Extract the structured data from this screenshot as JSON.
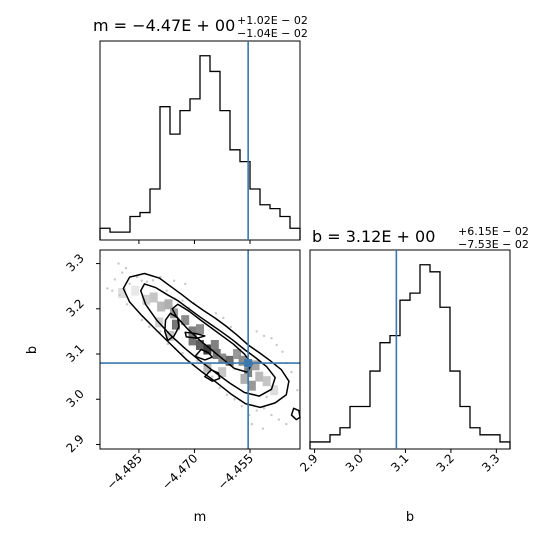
{
  "chart_data": [
    {
      "type": "histogram",
      "panel": "m-marginal",
      "title_main": "m = −4.47E + 00",
      "title_sup": "+1.02E − 02",
      "title_sub": "−1.04E − 02",
      "xlim": [
        -4.4955,
        -4.4415
      ],
      "truth": -4.4555,
      "bin_edges": [
        -4.4955,
        -4.4928,
        -4.4901,
        -4.4874,
        -4.4847,
        -4.482,
        -4.4793,
        -4.4766,
        -4.4739,
        -4.4712,
        -4.4685,
        -4.4658,
        -4.4631,
        -4.4604,
        -4.4577,
        -4.455,
        -4.4523,
        -4.4496,
        -4.4469,
        -4.4442,
        -4.4415
      ],
      "counts": [
        3,
        2,
        2,
        6,
        7,
        13,
        34,
        27,
        33,
        36,
        47,
        43,
        33,
        23,
        20,
        13,
        9,
        8,
        6,
        3
      ]
    },
    {
      "type": "histogram",
      "panel": "b-marginal",
      "title_main": "b = 3.12E + 00",
      "title_sup": "+6.15E − 02",
      "title_sub": "−7.53E − 02",
      "xlim": [
        2.89,
        3.33
      ],
      "xticks": [
        2.9,
        3.0,
        3.1,
        3.2,
        3.3
      ],
      "xtick_labels": [
        "2.9",
        "3.0",
        "3.1",
        "3.2",
        "3.3"
      ],
      "xlabel": "b",
      "truth": 3.08,
      "bin_edges": [
        2.89,
        2.912,
        2.934,
        2.956,
        2.978,
        3.0,
        3.022,
        3.044,
        3.066,
        3.088,
        3.11,
        3.132,
        3.154,
        3.176,
        3.198,
        3.22,
        3.242,
        3.264,
        3.286,
        3.308,
        3.33
      ],
      "counts": [
        1,
        1,
        2,
        3,
        6,
        6,
        11,
        15,
        16,
        21,
        22,
        26,
        25,
        20,
        11,
        6,
        3,
        2,
        2,
        1
      ]
    },
    {
      "type": "contour",
      "panel": "m-b-joint",
      "xlim": [
        -4.4955,
        -4.4415
      ],
      "ylim": [
        2.89,
        3.33
      ],
      "xticks": [
        -4.485,
        -4.47,
        -4.455
      ],
      "xtick_labels": [
        "−4.485",
        "−4.470",
        "−4.455"
      ],
      "yticks": [
        2.9,
        3.0,
        3.1,
        3.2,
        3.3
      ],
      "ytick_labels": [
        "2.9",
        "3.0",
        "3.1",
        "3.2",
        "3.3"
      ],
      "xlabel": "m",
      "ylabel": "b",
      "truth_x": -4.4555,
      "truth_y": 3.08,
      "cells": [
        [
          -4.4895,
          3.235,
          0.15
        ],
        [
          -4.486,
          3.24,
          0.1
        ],
        [
          -4.483,
          3.22,
          0.2
        ],
        [
          -4.481,
          3.225,
          0.25
        ],
        [
          -4.479,
          3.205,
          0.3
        ],
        [
          -4.477,
          3.21,
          0.35
        ],
        [
          -4.4755,
          3.19,
          0.45
        ],
        [
          -4.475,
          3.165,
          0.6
        ],
        [
          -4.4725,
          3.175,
          0.5
        ],
        [
          -4.4705,
          3.15,
          0.55
        ],
        [
          -4.4685,
          3.155,
          0.5
        ],
        [
          -4.4705,
          3.13,
          0.6
        ],
        [
          -4.4685,
          3.12,
          0.7
        ],
        [
          -4.4665,
          3.11,
          0.85
        ],
        [
          -4.4645,
          3.12,
          0.55
        ],
        [
          -4.464,
          3.1,
          0.6
        ],
        [
          -4.4625,
          3.09,
          0.5
        ],
        [
          -4.4605,
          3.085,
          0.65
        ],
        [
          -4.4585,
          3.1,
          0.45
        ],
        [
          -4.457,
          3.085,
          0.5
        ],
        [
          -4.4555,
          3.06,
          0.55
        ],
        [
          -4.4535,
          3.075,
          0.4
        ],
        [
          -4.4565,
          3.045,
          0.35
        ],
        [
          -4.4545,
          3.03,
          0.45
        ],
        [
          -4.4525,
          3.05,
          0.3
        ],
        [
          -4.4505,
          3.04,
          0.25
        ],
        [
          -4.4485,
          3.02,
          0.15
        ],
        [
          -4.4665,
          3.07,
          0.3
        ],
        [
          -4.4625,
          3.06,
          0.25
        ],
        [
          -4.4765,
          3.14,
          0.25
        ],
        [
          -4.4795,
          3.17,
          0.2
        ]
      ],
      "points": [
        [
          -4.4915,
          3.265
        ],
        [
          -4.4905,
          3.3
        ],
        [
          -4.4885,
          3.29
        ],
        [
          -4.4895,
          3.28
        ],
        [
          -4.4875,
          3.255
        ],
        [
          -4.4935,
          3.245
        ],
        [
          -4.4855,
          3.27
        ],
        [
          -4.4842,
          3.262
        ],
        [
          -4.4828,
          3.26
        ],
        [
          -4.4812,
          3.263
        ],
        [
          -4.4792,
          3.27
        ],
        [
          -4.4775,
          3.24
        ],
        [
          -4.4752,
          3.222
        ],
        [
          -4.4732,
          3.218
        ],
        [
          -4.4715,
          3.202
        ],
        [
          -4.4702,
          3.212
        ],
        [
          -4.4842,
          3.175
        ],
        [
          -4.4822,
          3.16
        ],
        [
          -4.4792,
          3.15
        ],
        [
          -4.4772,
          3.122
        ],
        [
          -4.4752,
          3.112
        ],
        [
          -4.4732,
          3.102
        ],
        [
          -4.4692,
          3.085
        ],
        [
          -4.4672,
          3.06
        ],
        [
          -4.4652,
          3.05
        ],
        [
          -4.4632,
          3.025
        ],
        [
          -4.4612,
          3.01
        ],
        [
          -4.4592,
          3.0
        ],
        [
          -4.4572,
          2.985
        ],
        [
          -4.4552,
          2.965
        ],
        [
          -4.4532,
          2.975
        ],
        [
          -4.4512,
          2.98
        ],
        [
          -4.4492,
          2.965
        ],
        [
          -4.4472,
          2.955
        ],
        [
          -4.4452,
          2.945
        ],
        [
          -4.4432,
          2.96
        ],
        [
          -4.4478,
          3.12
        ],
        [
          -4.4462,
          3.105
        ],
        [
          -4.4492,
          3.135
        ],
        [
          -4.4512,
          3.14
        ],
        [
          -4.4532,
          3.15
        ],
        [
          -4.4452,
          3.08
        ],
        [
          -4.4438,
          3.06
        ],
        [
          -4.4422,
          3.02
        ],
        [
          -4.4505,
          3.005
        ],
        [
          -4.4545,
          2.945
        ],
        [
          -4.4515,
          2.935
        ],
        [
          -4.4622,
          3.18
        ],
        [
          -4.4642,
          3.19
        ],
        [
          -4.4602,
          3.16
        ],
        [
          -4.4882,
          3.21
        ],
        [
          -4.4902,
          3.23
        ],
        [
          -4.4922,
          3.24
        ],
        [
          -4.4725,
          3.255
        ],
        [
          -4.4755,
          3.262
        ]
      ],
      "level_outer": [
        [
          -4.4875,
          3.27
        ],
        [
          -4.4835,
          3.278
        ],
        [
          -4.4795,
          3.268
        ],
        [
          -4.4765,
          3.25
        ],
        [
          -4.4735,
          3.232
        ],
        [
          -4.4705,
          3.213
        ],
        [
          -4.4675,
          3.196
        ],
        [
          -4.4645,
          3.18
        ],
        [
          -4.4615,
          3.162
        ],
        [
          -4.4585,
          3.142
        ],
        [
          -4.4555,
          3.12
        ],
        [
          -4.4525,
          3.103
        ],
        [
          -4.4495,
          3.085
        ],
        [
          -4.4465,
          3.065
        ],
        [
          -4.4445,
          3.04
        ],
        [
          -4.4452,
          3.01
        ],
        [
          -4.4482,
          2.992
        ],
        [
          -4.4522,
          2.982
        ],
        [
          -4.4562,
          2.99
        ],
        [
          -4.4602,
          3.012
        ],
        [
          -4.4642,
          3.038
        ],
        [
          -4.4682,
          3.062
        ],
        [
          -4.4722,
          3.088
        ],
        [
          -4.4762,
          3.12
        ],
        [
          -4.4802,
          3.152
        ],
        [
          -4.4842,
          3.185
        ],
        [
          -4.4875,
          3.215
        ],
        [
          -4.4892,
          3.245
        ]
      ],
      "level_mid": [
        [
          -4.4835,
          3.255
        ],
        [
          -4.4805,
          3.247
        ],
        [
          -4.4775,
          3.232
        ],
        [
          -4.4745,
          3.218
        ],
        [
          -4.4715,
          3.2
        ],
        [
          -4.4685,
          3.182
        ],
        [
          -4.4655,
          3.165
        ],
        [
          -4.4625,
          3.148
        ],
        [
          -4.4595,
          3.13
        ],
        [
          -4.4565,
          3.11
        ],
        [
          -4.4535,
          3.092
        ],
        [
          -4.4505,
          3.072
        ],
        [
          -4.4482,
          3.048
        ],
        [
          -4.4492,
          3.022
        ],
        [
          -4.4525,
          3.007
        ],
        [
          -4.4565,
          3.015
        ],
        [
          -4.4605,
          3.036
        ],
        [
          -4.4645,
          3.06
        ],
        [
          -4.4685,
          3.085
        ],
        [
          -4.4725,
          3.112
        ],
        [
          -4.4765,
          3.142
        ],
        [
          -4.4802,
          3.175
        ],
        [
          -4.4832,
          3.21
        ],
        [
          -4.4845,
          3.24
        ]
      ],
      "level_inner": [
        [
          -4.4745,
          3.21
        ],
        [
          -4.4715,
          3.195
        ],
        [
          -4.4685,
          3.176
        ],
        [
          -4.4655,
          3.158
        ],
        [
          -4.4625,
          3.14
        ],
        [
          -4.4595,
          3.122
        ],
        [
          -4.4565,
          3.1
        ],
        [
          -4.4545,
          3.078
        ],
        [
          -4.4558,
          3.06
        ],
        [
          -4.4592,
          3.068
        ],
        [
          -4.4625,
          3.09
        ],
        [
          -4.4655,
          3.11
        ],
        [
          -4.4685,
          3.13
        ],
        [
          -4.4718,
          3.155
        ],
        [
          -4.4748,
          3.182
        ],
        [
          -4.476,
          3.2
        ]
      ],
      "level_blob_a": [
        [
          -4.4765,
          3.19
        ],
        [
          -4.4745,
          3.18
        ],
        [
          -4.4742,
          3.16
        ],
        [
          -4.4755,
          3.14
        ],
        [
          -4.4772,
          3.13
        ],
        [
          -4.478,
          3.15
        ],
        [
          -4.4778,
          3.175
        ]
      ],
      "level_blob_b": [
        [
          -4.4725,
          3.148
        ],
        [
          -4.4695,
          3.145
        ],
        [
          -4.4672,
          3.14
        ],
        [
          -4.4692,
          3.135
        ],
        [
          -4.4722,
          3.138
        ]
      ],
      "level_blob_c": [
        [
          -4.4682,
          3.11
        ],
        [
          -4.4662,
          3.103
        ],
        [
          -4.4652,
          3.093
        ],
        [
          -4.4672,
          3.087
        ],
        [
          -4.4698,
          3.095
        ]
      ],
      "level_blob_d": [
        [
          -4.4655,
          3.065
        ],
        [
          -4.4635,
          3.058
        ],
        [
          -4.4632,
          3.046
        ],
        [
          -4.4652,
          3.04
        ],
        [
          -4.4672,
          3.05
        ]
      ],
      "level_blob_e": [
        [
          -4.4432,
          2.98
        ],
        [
          -4.4418,
          2.975
        ],
        [
          -4.4415,
          2.96
        ],
        [
          -4.4425,
          2.955
        ],
        [
          -4.4438,
          2.965
        ]
      ]
    }
  ]
}
